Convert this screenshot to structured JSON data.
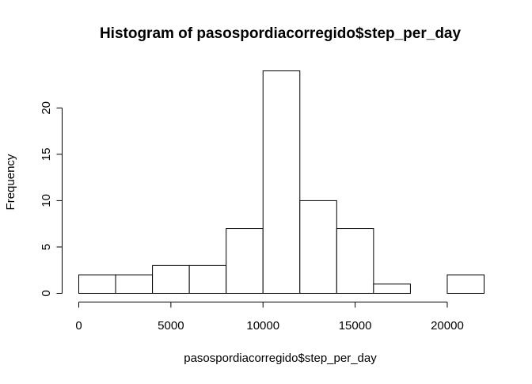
{
  "chart_data": {
    "type": "bar",
    "title": "Histogram of pasospordiacorregido$step_per_day",
    "xlabel": "pasospordiacorregido$step_per_day",
    "ylabel": "Frequency",
    "bins": [
      {
        "start": 0,
        "end": 2000,
        "count": 2
      },
      {
        "start": 2000,
        "end": 4000,
        "count": 2
      },
      {
        "start": 4000,
        "end": 6000,
        "count": 3
      },
      {
        "start": 6000,
        "end": 8000,
        "count": 3
      },
      {
        "start": 8000,
        "end": 10000,
        "count": 7
      },
      {
        "start": 10000,
        "end": 12000,
        "count": 24
      },
      {
        "start": 12000,
        "end": 14000,
        "count": 10
      },
      {
        "start": 14000,
        "end": 16000,
        "count": 7
      },
      {
        "start": 16000,
        "end": 18000,
        "count": 1
      },
      {
        "start": 18000,
        "end": 20000,
        "count": 0
      },
      {
        "start": 20000,
        "end": 22000,
        "count": 2
      }
    ],
    "xticks": [
      0,
      5000,
      10000,
      15000,
      20000
    ],
    "xtick_labels": [
      "0",
      "5000",
      "10000",
      "15000",
      "20000"
    ],
    "yticks": [
      0,
      5,
      10,
      15,
      20
    ],
    "ytick_labels": [
      "0",
      "5",
      "10",
      "15",
      "20"
    ],
    "xlim": [
      0,
      22000
    ],
    "ylim": [
      0,
      24
    ],
    "grid": false,
    "colors": {
      "bar_fill": "#ffffff",
      "bar_stroke": "#000000",
      "axis": "#000000"
    }
  }
}
